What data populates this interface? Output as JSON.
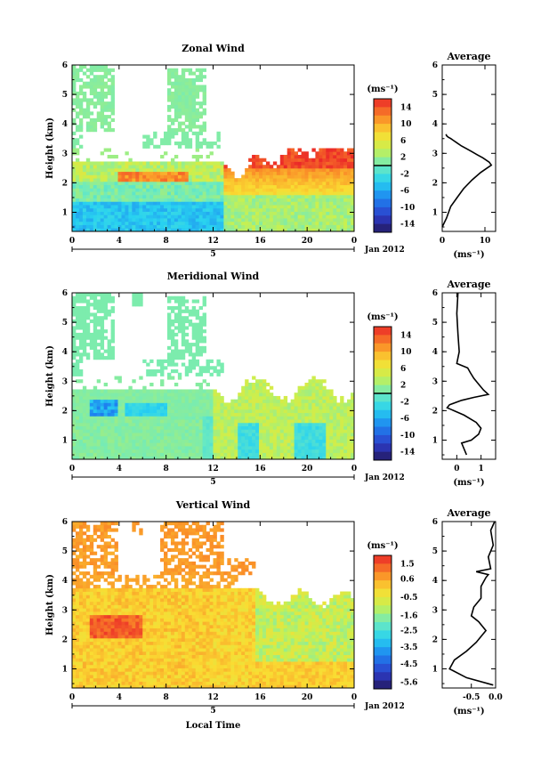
{
  "chart_data": [
    {
      "type": "heatmap",
      "title": "Zonal Wind",
      "ylabel": "Height (km)",
      "xlabel": "",
      "xticks": [
        "0",
        "4",
        "8",
        "12",
        "16",
        "20",
        "0"
      ],
      "yticks": [
        "1",
        "2",
        "3",
        "4",
        "5",
        "6"
      ],
      "xlim": [
        0,
        24
      ],
      "ylim": [
        0.35,
        6
      ],
      "day_label": "5",
      "date_label": "Jan 2012",
      "colorbar": {
        "unit": "(ms⁻¹)",
        "ticks": [
          "14",
          "10",
          "6",
          "2",
          "-2",
          "-6",
          "-10",
          "-14"
        ],
        "range": [
          -16,
          16
        ],
        "marker": 0
      },
      "field_pattern": "zonal"
    },
    {
      "type": "heatmap",
      "title": "Meridional Wind",
      "ylabel": "Height (km)",
      "xlabel": "",
      "xticks": [
        "0",
        "4",
        "8",
        "12",
        "16",
        "20",
        "0"
      ],
      "yticks": [
        "1",
        "2",
        "3",
        "4",
        "5",
        "6"
      ],
      "xlim": [
        0,
        24
      ],
      "ylim": [
        0.35,
        6
      ],
      "day_label": "5",
      "date_label": "Jan 2012",
      "colorbar": {
        "unit": "(ms⁻¹)",
        "ticks": [
          "14",
          "10",
          "6",
          "2",
          "-2",
          "-6",
          "-10",
          "-14"
        ],
        "range": [
          -16,
          16
        ],
        "marker": 0
      },
      "field_pattern": "meridional"
    },
    {
      "type": "heatmap",
      "title": "Vertical Wind",
      "ylabel": "Height (km)",
      "xlabel": "Local Time",
      "xticks": [
        "0",
        "4",
        "8",
        "12",
        "16",
        "20",
        "0"
      ],
      "yticks": [
        "1",
        "2",
        "3",
        "4",
        "5",
        "6"
      ],
      "xlim": [
        0,
        24
      ],
      "ylim": [
        0.35,
        6
      ],
      "day_label": "5",
      "date_label": "Jan 2012",
      "colorbar": {
        "unit": "(ms⁻¹)",
        "ticks": [
          "1.5",
          "0.6",
          "-0.5",
          "-1.6",
          "-2.5",
          "-3.5",
          "-4.5",
          "-5.6"
        ],
        "range": [
          -6,
          2
        ]
      },
      "field_pattern": "vertical"
    },
    {
      "type": "line",
      "title": "Average",
      "xlabel": "(ms⁻¹)",
      "xticks": [
        "0",
        "10"
      ],
      "xlim": [
        0,
        12.5
      ],
      "yticks": [
        "1",
        "2",
        "3",
        "4",
        "5",
        "6"
      ],
      "ylim": [
        0.35,
        6
      ],
      "series": [
        {
          "x": [
            0,
            1,
            2,
            3.5,
            5,
            7,
            9,
            10.5,
            11.5,
            11.0,
            9.5,
            8.2,
            7.0,
            5.8,
            4.5,
            3.5,
            2.5,
            2.0,
            1.4,
            1.0,
            0.9
          ],
          "y": [
            0.5,
            0.8,
            1.2,
            1.5,
            1.8,
            2.1,
            2.35,
            2.5,
            2.6,
            2.7,
            2.85,
            2.95,
            3.05,
            3.15,
            3.25,
            3.35,
            3.45,
            3.5,
            3.55,
            3.6,
            3.65
          ]
        }
      ]
    },
    {
      "type": "line",
      "title": "Average",
      "xlabel": "(ms⁻¹)",
      "xticks": [
        "0",
        "1"
      ],
      "xlim": [
        -0.6,
        1.6
      ],
      "yticks": [
        "1",
        "2",
        "3",
        "4",
        "5",
        "6"
      ],
      "ylim": [
        0.35,
        6
      ],
      "series": [
        {
          "x": [
            0.4,
            0.2,
            0.6,
            0.9,
            1.0,
            0.8,
            0.3,
            -0.4,
            -0.3,
            0.2,
            0.7,
            1.3,
            1.1,
            0.9,
            0.7,
            0.55,
            0.45,
            0.0,
            0.1,
            0.05,
            0.0,
            0.05
          ],
          "y": [
            0.5,
            0.9,
            1.0,
            1.2,
            1.4,
            1.6,
            1.85,
            2.1,
            2.2,
            2.35,
            2.45,
            2.55,
            2.7,
            2.9,
            3.1,
            3.3,
            3.45,
            3.6,
            4.0,
            4.6,
            5.3,
            6.0
          ]
        }
      ]
    },
    {
      "type": "line",
      "title": "Average",
      "xlabel": "(ms⁻¹)",
      "xticks": [
        "-0.5",
        "0.0"
      ],
      "xlim": [
        -1.1,
        0.0
      ],
      "yticks": [
        "1",
        "2",
        "3",
        "4",
        "5",
        "6"
      ],
      "ylim": [
        0.35,
        6
      ],
      "series": [
        {
          "x": [
            -0.05,
            -0.6,
            -0.95,
            -0.85,
            -0.6,
            -0.4,
            -0.3,
            -0.2,
            -0.35,
            -0.5,
            -0.45,
            -0.3,
            -0.3,
            -0.2,
            -0.15,
            -0.4,
            -0.1,
            -0.15,
            -0.05,
            -0.1,
            -0.02
          ],
          "y": [
            0.45,
            0.7,
            1.0,
            1.3,
            1.6,
            1.9,
            2.1,
            2.3,
            2.6,
            2.8,
            3.1,
            3.4,
            3.8,
            4.1,
            4.2,
            4.3,
            4.4,
            4.8,
            5.2,
            5.7,
            6.0
          ]
        }
      ]
    }
  ]
}
